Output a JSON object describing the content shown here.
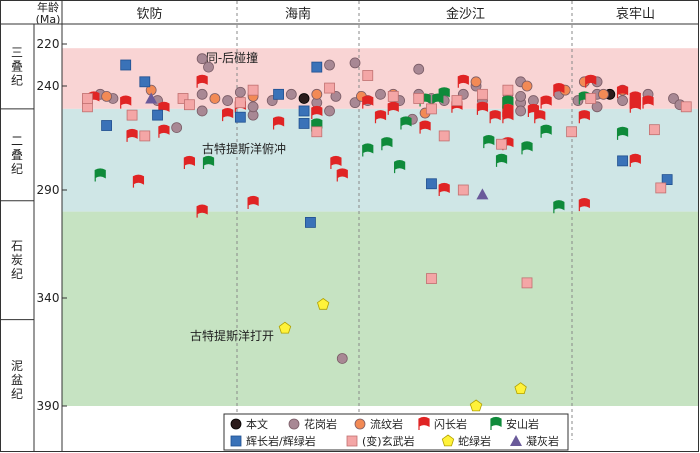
{
  "chart_data": {
    "type": "scatter",
    "y_axis_title_line1": "年龄",
    "y_axis_title_line2": "(Ma)",
    "ylim": [
      212,
      405
    ],
    "y_ticks": [
      220,
      240,
      290,
      340,
      390
    ],
    "columns": [
      "钦防",
      "海南",
      "金沙江",
      "哀牢山"
    ],
    "periods": [
      {
        "name": "三叠纪",
        "from": 212,
        "to": 251
      },
      {
        "name": "二叠纪",
        "from": 251,
        "to": 295
      },
      {
        "name": "石炭纪",
        "from": 295,
        "to": 350
      },
      {
        "name": "泥盆纪",
        "from": 350,
        "to": 405
      }
    ],
    "zones": [
      {
        "label": "同-后碰撞",
        "from": 222,
        "to": 251,
        "color": "#f9d4d4"
      },
      {
        "label": "古特提斯洋俯冲",
        "from": 251,
        "to": 300,
        "color": "#cfe6e6"
      },
      {
        "label": "古特提斯洋打开",
        "from": 300,
        "to": 390,
        "color": "#c6e3c2"
      }
    ],
    "legend": [
      {
        "key": "this",
        "label": "本文"
      },
      {
        "key": "granite",
        "label": "花岗岩"
      },
      {
        "key": "rhyolite",
        "label": "流纹岩"
      },
      {
        "key": "gabbroic",
        "label": "闪长岩"
      },
      {
        "key": "andesite",
        "label": "安山岩"
      },
      {
        "key": "gabbro",
        "label": "辉长岩/辉绿岩"
      },
      {
        "key": "basalt",
        "label": "(变)玄武岩"
      },
      {
        "key": "ophiolite",
        "label": "蛇绿岩"
      },
      {
        "key": "tuff",
        "label": "凝灰岩"
      }
    ],
    "colors": {
      "this": "#2b1c1c",
      "granite": "#a88894",
      "rhyolite": "#f28a55",
      "gabbroic": "#e02424",
      "andesite": "#0f8a3a",
      "gabbro": "#3a72b8",
      "basalt": "#f4a6a6",
      "ophiolite": "#fff23a",
      "tuff": "#6a5a9a"
    },
    "series": [
      {
        "key": "this",
        "points": [
          [
            0.38,
            246
          ],
          [
            0.86,
            244
          ]
        ]
      },
      {
        "key": "granite",
        "points": [
          [
            0.04,
            248
          ],
          [
            0.06,
            244
          ],
          [
            0.15,
            247
          ],
          [
            0.22,
            244
          ],
          [
            0.26,
            247
          ],
          [
            0.3,
            244
          ],
          [
            0.33,
            247
          ],
          [
            0.36,
            244
          ],
          [
            0.4,
            248
          ],
          [
            0.43,
            245
          ],
          [
            0.46,
            248
          ],
          [
            0.5,
            244
          ],
          [
            0.53,
            247
          ],
          [
            0.56,
            244
          ],
          [
            0.6,
            247
          ],
          [
            0.63,
            244
          ],
          [
            0.66,
            247
          ],
          [
            0.7,
            244
          ],
          [
            0.74,
            247
          ],
          [
            0.78,
            244
          ],
          [
            0.81,
            247
          ],
          [
            0.84,
            244
          ],
          [
            0.88,
            247
          ],
          [
            0.92,
            244
          ],
          [
            0.96,
            246
          ],
          [
            0.48,
            247
          ],
          [
            0.72,
            248
          ],
          [
            0.3,
            254
          ],
          [
            0.22,
            227
          ],
          [
            0.42,
            230
          ],
          [
            0.28,
            243
          ],
          [
            0.65,
            240
          ],
          [
            0.72,
            245
          ],
          [
            0.84,
            238
          ],
          [
            0.97,
            249
          ],
          [
            0.55,
            256
          ],
          [
            0.18,
            260
          ],
          [
            0.72,
            252
          ],
          [
            0.23,
            231
          ],
          [
            0.46,
            229
          ],
          [
            0.56,
            232
          ],
          [
            0.72,
            238
          ],
          [
            0.08,
            246
          ],
          [
            0.22,
            252
          ],
          [
            0.3,
            250
          ],
          [
            0.42,
            252
          ],
          [
            0.58,
            246
          ],
          [
            0.84,
            250
          ],
          [
            0.44,
            368
          ]
        ]
      },
      {
        "key": "rhyolite",
        "points": [
          [
            0.07,
            245
          ],
          [
            0.14,
            242
          ],
          [
            0.24,
            246
          ],
          [
            0.3,
            245
          ],
          [
            0.4,
            244
          ],
          [
            0.47,
            245
          ],
          [
            0.52,
            244
          ],
          [
            0.65,
            238
          ],
          [
            0.73,
            240
          ],
          [
            0.79,
            242
          ],
          [
            0.85,
            244
          ],
          [
            0.88,
            242
          ],
          [
            0.82,
            238
          ],
          [
            0.57,
            253
          ]
        ]
      },
      {
        "key": "gabbroic",
        "points": [
          [
            0.48,
            248
          ],
          [
            0.34,
            258
          ],
          [
            0.16,
            262
          ],
          [
            0.1,
            248
          ],
          [
            0.5,
            255
          ],
          [
            0.68,
            255
          ],
          [
            0.9,
            246
          ],
          [
            0.05,
            246
          ],
          [
            0.16,
            251
          ],
          [
            0.26,
            254
          ],
          [
            0.43,
            277
          ],
          [
            0.22,
            238
          ],
          [
            0.63,
            238
          ],
          [
            0.7,
            255
          ],
          [
            0.83,
            238
          ],
          [
            0.78,
            242
          ],
          [
            0.9,
            250
          ],
          [
            0.4,
            253
          ],
          [
            0.75,
            255
          ],
          [
            0.6,
            290
          ],
          [
            0.82,
            255
          ],
          [
            0.2,
            277
          ],
          [
            0.3,
            296
          ],
          [
            0.44,
            283
          ],
          [
            0.7,
            248
          ],
          [
            0.12,
            286
          ],
          [
            0.22,
            300
          ],
          [
            0.7,
            252
          ],
          [
            0.57,
            260
          ],
          [
            0.7,
            268
          ],
          [
            0.9,
            248
          ],
          [
            0.62,
            250
          ],
          [
            0.88,
            243
          ],
          [
            0.52,
            251
          ],
          [
            0.74,
            252
          ],
          [
            0.92,
            248
          ],
          [
            0.11,
            264
          ],
          [
            0.28,
            250
          ],
          [
            0.66,
            251
          ],
          [
            0.76,
            248
          ],
          [
            0.82,
            297
          ],
          [
            0.9,
            276
          ]
        ]
      },
      {
        "key": "andesite",
        "points": [
          [
            0.4,
            259
          ],
          [
            0.57,
            247
          ],
          [
            0.59,
            247
          ],
          [
            0.7,
            248
          ],
          [
            0.73,
            270
          ],
          [
            0.06,
            283
          ],
          [
            0.23,
            277
          ],
          [
            0.51,
            268
          ],
          [
            0.54,
            258
          ],
          [
            0.67,
            267
          ],
          [
            0.78,
            298
          ],
          [
            0.48,
            271
          ],
          [
            0.6,
            244
          ],
          [
            0.82,
            246
          ],
          [
            0.53,
            279
          ],
          [
            0.88,
            263
          ],
          [
            0.76,
            262
          ],
          [
            0.69,
            276
          ]
        ]
      },
      {
        "key": "gabbro",
        "points": [
          [
            0.1,
            230
          ],
          [
            0.13,
            238
          ],
          [
            0.34,
            244
          ],
          [
            0.38,
            258
          ],
          [
            0.38,
            252
          ],
          [
            0.4,
            231
          ],
          [
            0.58,
            287
          ],
          [
            0.95,
            285
          ],
          [
            0.88,
            276
          ],
          [
            0.39,
            305
          ],
          [
            0.28,
            255
          ],
          [
            0.15,
            254
          ],
          [
            0.07,
            259
          ]
        ]
      },
      {
        "key": "basalt",
        "points": [
          [
            0.04,
            250
          ],
          [
            0.11,
            254
          ],
          [
            0.19,
            246
          ],
          [
            0.28,
            248
          ],
          [
            0.42,
            241
          ],
          [
            0.48,
            235
          ],
          [
            0.58,
            251
          ],
          [
            0.62,
            247
          ],
          [
            0.66,
            244
          ],
          [
            0.7,
            242
          ],
          [
            0.04,
            246
          ],
          [
            0.13,
            264
          ],
          [
            0.4,
            262
          ],
          [
            0.6,
            264
          ],
          [
            0.8,
            262
          ],
          [
            0.93,
            261
          ],
          [
            0.94,
            289
          ],
          [
            0.73,
            333
          ],
          [
            0.83,
            246
          ],
          [
            0.56,
            246
          ],
          [
            0.2,
            249
          ],
          [
            0.3,
            242
          ],
          [
            0.52,
            245
          ],
          [
            0.63,
            290
          ],
          [
            0.69,
            268
          ],
          [
            0.98,
            250
          ],
          [
            0.58,
            331
          ]
        ]
      },
      {
        "key": "ophiolite",
        "points": [
          [
            0.41,
            343
          ],
          [
            0.65,
            390
          ],
          [
            0.35,
            354
          ],
          [
            0.72,
            382
          ]
        ]
      },
      {
        "key": "tuff",
        "points": [
          [
            0.14,
            246
          ],
          [
            0.66,
            292
          ]
        ]
      }
    ]
  }
}
